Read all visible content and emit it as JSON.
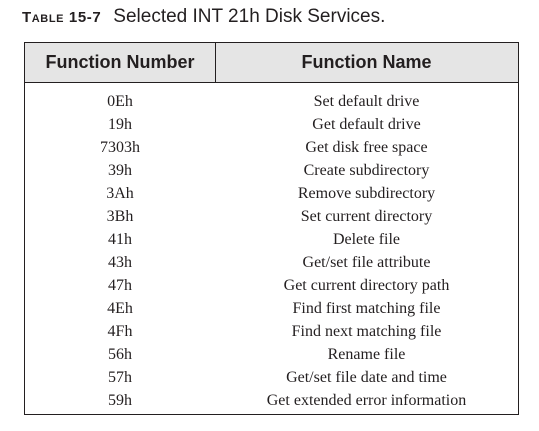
{
  "caption": {
    "label": "Table 15-7",
    "title": "Selected INT 21h Disk Services."
  },
  "table": {
    "headers": [
      "Function Number",
      "Function Name"
    ],
    "rows": [
      [
        "0Eh",
        "Set default drive"
      ],
      [
        "19h",
        "Get default drive"
      ],
      [
        "7303h",
        "Get disk free space"
      ],
      [
        "39h",
        "Create subdirectory"
      ],
      [
        "3Ah",
        "Remove subdirectory"
      ],
      [
        "3Bh",
        "Set current directory"
      ],
      [
        "41h",
        "Delete file"
      ],
      [
        "43h",
        "Get/set file attribute"
      ],
      [
        "47h",
        "Get current directory path"
      ],
      [
        "4Eh",
        "Find first matching file"
      ],
      [
        "4Fh",
        "Find next matching file"
      ],
      [
        "56h",
        "Rename file"
      ],
      [
        "57h",
        "Get/set file date and time"
      ],
      [
        "59h",
        "Get extended error information"
      ]
    ]
  }
}
